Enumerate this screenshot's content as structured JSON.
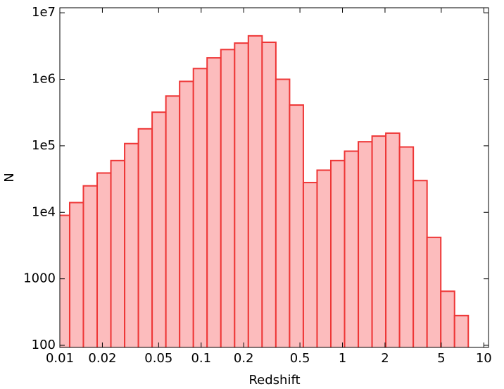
{
  "chart_data": {
    "type": "histogram",
    "x_label": "Redshift",
    "y_label": "N",
    "bins": [
      0.00938,
      0.01174,
      0.01468,
      0.01837,
      0.02298,
      0.02875,
      0.03597,
      0.04499,
      0.05629,
      0.07042,
      0.0881,
      0.1102,
      0.1379,
      0.1725,
      0.2158,
      0.27,
      0.3378,
      0.4225,
      0.5286,
      0.6613,
      0.8273,
      1.035,
      1.295,
      1.62,
      2.026,
      2.535,
      3.171,
      3.967,
      4.963,
      6.209,
      7.768
    ],
    "values": [
      9000,
      14000,
      25000,
      39000,
      60000,
      108000,
      180000,
      320000,
      560000,
      930000,
      1450000,
      2100000,
      2800000,
      3500000,
      4500000,
      3600000,
      1000000,
      410000,
      28000,
      43000,
      60000,
      83000,
      115000,
      140000,
      155000,
      96000,
      30000,
      4200,
      650,
      280
    ],
    "color": "#fcbcbd",
    "edge_color": "#ee3636",
    "xscale": "log",
    "yscale": "log",
    "xlim": [
      0.01,
      10.8
    ],
    "ylim": [
      93,
      11900000
    ],
    "xticks": [
      0.01,
      0.02,
      0.05,
      0.1,
      0.2,
      0.5,
      1,
      2,
      5,
      10
    ],
    "yticks": [
      100,
      1000,
      {
        "value": 10000,
        "label": "1e4"
      },
      {
        "value": 100000,
        "label": "1e5"
      },
      {
        "value": 1000000,
        "label": "1e6"
      },
      {
        "value": 10000000,
        "label": "1e7"
      }
    ]
  }
}
